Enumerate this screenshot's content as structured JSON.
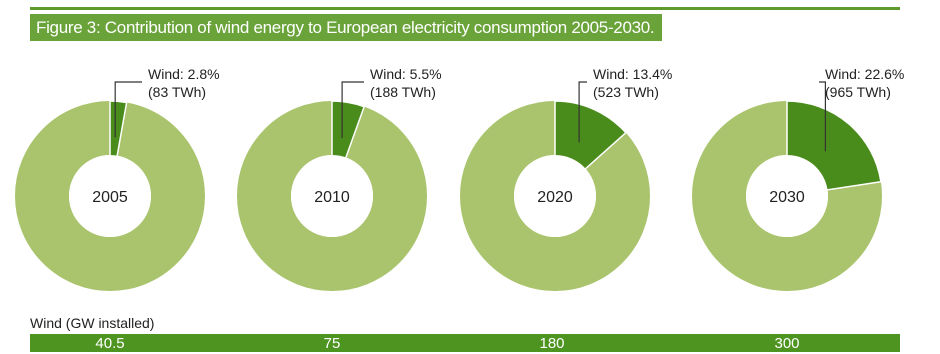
{
  "figure": {
    "title": "Figure 3: Contribution of wind energy to European electricity consumption 2005-2030."
  },
  "colors": {
    "rule": "#5e9a2c",
    "title_bg": "#6aa33a",
    "wind": "#4a8c1c",
    "other": "#a9c46c",
    "bar": "#4e9421"
  },
  "chart_data": {
    "type": "pie",
    "title": "Figure 3: Contribution of wind energy to European electricity consumption 2005-2030.",
    "charts": [
      {
        "year": "2005",
        "wind_share_pct": 2.8,
        "wind_twh": 83,
        "label_line1": "Wind: 2.8%",
        "label_line2": "(83 TWh)",
        "gw_installed": "40.5"
      },
      {
        "year": "2010",
        "wind_share_pct": 5.5,
        "wind_twh": 188,
        "label_line1": "Wind: 5.5%",
        "label_line2": "(188 TWh)",
        "gw_installed": "75"
      },
      {
        "year": "2020",
        "wind_share_pct": 13.4,
        "wind_twh": 523,
        "label_line1": "Wind: 13.4%",
        "label_line2": "(523 TWh)",
        "gw_installed": "180"
      },
      {
        "year": "2030",
        "wind_share_pct": 22.6,
        "wind_twh": 965,
        "label_line1": "Wind: 22.6%",
        "label_line2": "(965 TWh)",
        "gw_installed": "300"
      }
    ],
    "bar_label": "Wind (GW installed)"
  }
}
